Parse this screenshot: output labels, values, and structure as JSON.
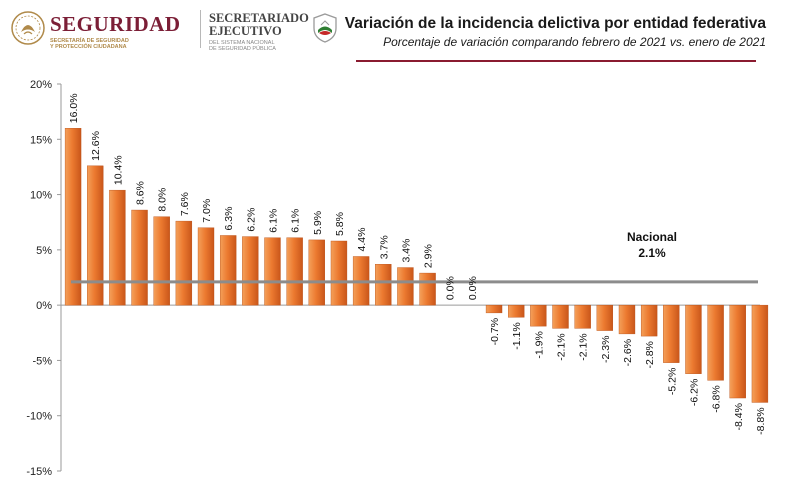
{
  "header": {
    "logo1": {
      "title": "SEGURIDAD",
      "subtitle_line1": "SECRETARÍA DE SEGURIDAD",
      "subtitle_line2": "Y PROTECCIÓN CIUDADANA"
    },
    "logo2": {
      "title_line1": "SECRETARIADO",
      "title_line2": "EJECUTIVO",
      "subtitle_line1": "DEL SISTEMA NACIONAL",
      "subtitle_line2": "DE SEGURIDAD PÚBLICA"
    },
    "brand_color": "#7b1e36",
    "accent_line_color": "#8a1b30"
  },
  "chart_data": {
    "type": "bar",
    "title": "Variación de la incidencia delictiva por entidad federativa",
    "subtitle": "Porcentaje de variación comparando febrero de 2021 vs. enero de 2021",
    "xlabel": "",
    "ylabel": "",
    "ylim": [
      -15,
      20
    ],
    "yticks": [
      20,
      15,
      10,
      5,
      0,
      -5,
      -10,
      -15
    ],
    "ytick_labels": [
      "20%",
      "15%",
      "10%",
      "5%",
      "0%",
      "-5%",
      "-10%",
      "-15%"
    ],
    "grid": false,
    "bar_color": "#e8702a",
    "values": [
      16.0,
      12.6,
      10.4,
      8.6,
      8.0,
      7.6,
      7.0,
      6.3,
      6.2,
      6.1,
      6.1,
      5.9,
      5.8,
      4.4,
      3.7,
      3.4,
      2.9,
      0.0,
      0.0,
      -0.7,
      -1.1,
      -1.9,
      -2.1,
      -2.1,
      -2.3,
      -2.6,
      -2.8,
      -5.2,
      -6.2,
      -6.8,
      -8.4,
      -8.8
    ],
    "data_labels": [
      "16.0%",
      "12.6%",
      "10.4%",
      "8.6%",
      "8.0%",
      "7.6%",
      "7.0%",
      "6.3%",
      "6.2%",
      "6.1%",
      "6.1%",
      "5.9%",
      "5.8%",
      "4.4%",
      "3.7%",
      "3.4%",
      "2.9%",
      "0.0%",
      "0.0%",
      "-0.7%",
      "-1.1%",
      "-1.9%",
      "-2.1%",
      "-2.1%",
      "-2.3%",
      "-2.6%",
      "-2.8%",
      "-5.2%",
      "-6.2%",
      "-6.8%",
      "-8.4%",
      "-8.8%"
    ],
    "reference_line": {
      "name": "Nacional",
      "value": 2.1,
      "label": "2.1%",
      "color": "#8c8c8c"
    }
  }
}
